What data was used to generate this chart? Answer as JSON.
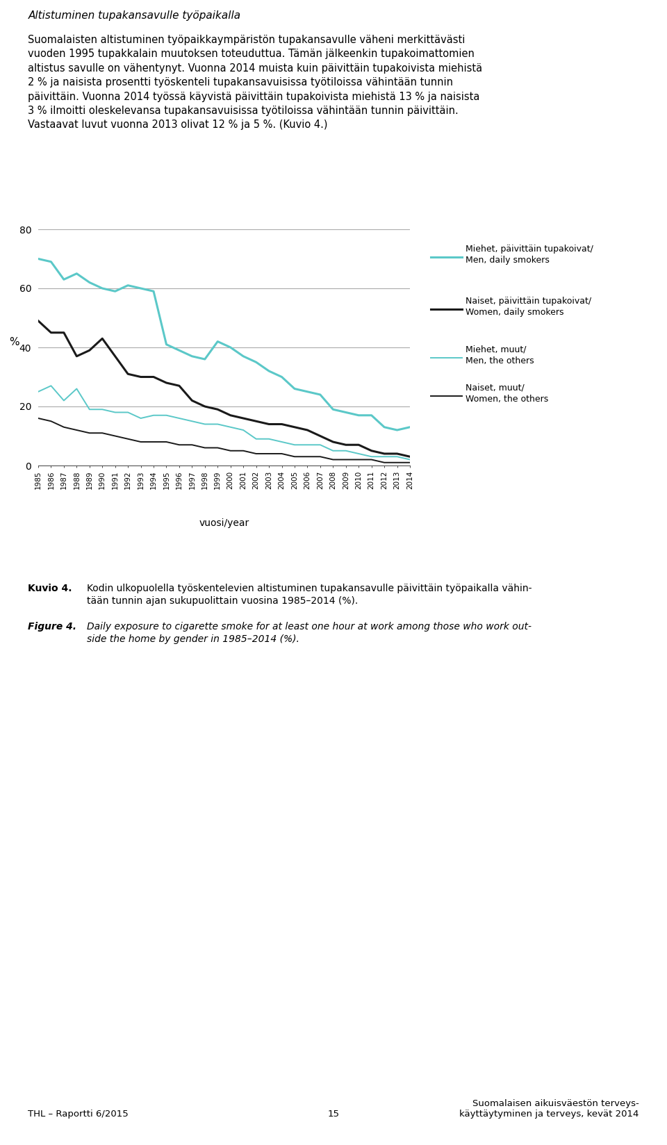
{
  "years": [
    1985,
    1986,
    1987,
    1988,
    1989,
    1990,
    1991,
    1992,
    1993,
    1994,
    1995,
    1996,
    1997,
    1998,
    1999,
    2000,
    2001,
    2002,
    2003,
    2004,
    2005,
    2006,
    2007,
    2008,
    2009,
    2010,
    2011,
    2012,
    2013,
    2014
  ],
  "men_daily": [
    70,
    69,
    63,
    65,
    62,
    60,
    59,
    61,
    60,
    59,
    41,
    39,
    37,
    36,
    42,
    40,
    37,
    35,
    32,
    30,
    26,
    25,
    24,
    19,
    18,
    17,
    17,
    13,
    12,
    13
  ],
  "women_daily": [
    49,
    45,
    45,
    37,
    39,
    43,
    37,
    31,
    30,
    30,
    28,
    27,
    22,
    20,
    19,
    17,
    16,
    15,
    14,
    14,
    13,
    12,
    10,
    8,
    7,
    7,
    5,
    4,
    4,
    3
  ],
  "men_others": [
    25,
    27,
    22,
    26,
    19,
    19,
    18,
    18,
    16,
    17,
    17,
    16,
    15,
    14,
    14,
    13,
    12,
    9,
    9,
    8,
    7,
    7,
    7,
    5,
    5,
    4,
    3,
    3,
    3,
    2
  ],
  "women_others": [
    16,
    15,
    13,
    12,
    11,
    11,
    10,
    9,
    8,
    8,
    8,
    7,
    7,
    6,
    6,
    5,
    5,
    4,
    4,
    4,
    3,
    3,
    3,
    2,
    2,
    2,
    2,
    1,
    1,
    1
  ],
  "color_teal": "#5BC8C8",
  "color_black": "#1A1A1A",
  "ylim": [
    0,
    80
  ],
  "yticks": [
    0,
    20,
    40,
    60,
    80
  ],
  "title_italic": "Altistuminen tupakansavulle työpaikalla",
  "footer_left": "THL – Raportti 6/2015",
  "footer_center": "15",
  "footer_right": "Suomalaisen aikuisväestön terveys-\nkäyttäytyminen ja terveys, kevät 2014"
}
